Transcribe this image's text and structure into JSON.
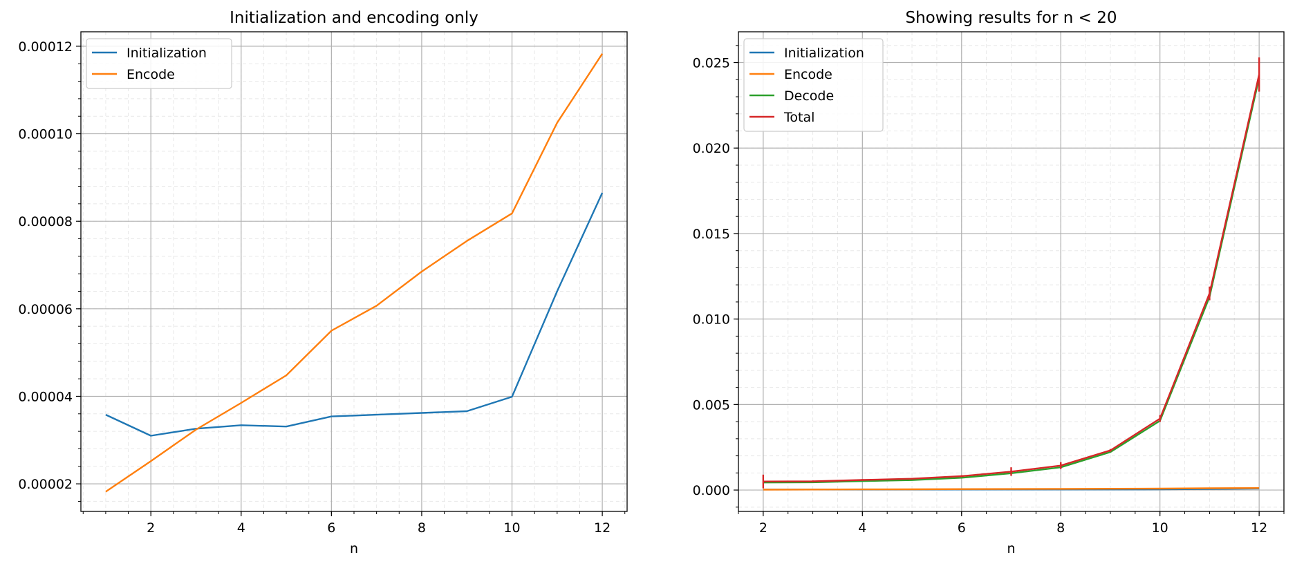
{
  "chart_data": [
    {
      "type": "line",
      "title": "Initialization and encoding only",
      "xlabel": "n",
      "ylabel": "",
      "xlim": [
        0.45,
        12.55
      ],
      "ylim": [
        1.37e-05,
        0.0001233
      ],
      "xticks": [
        2,
        4,
        6,
        8,
        10,
        12
      ],
      "xtick_labels": [
        "2",
        "4",
        "6",
        "8",
        "10",
        "12"
      ],
      "yticks": [
        2e-05,
        4e-05,
        6e-05,
        8e-05,
        0.0001,
        0.00012
      ],
      "ytick_labels": [
        "0.00002",
        "0.00004",
        "0.00006",
        "0.00008",
        "0.00010",
        "0.00012"
      ],
      "grid": true,
      "minor_grid": true,
      "legend_position": "top-left",
      "series": [
        {
          "name": "Initialization",
          "color": "#1f77b4",
          "x": [
            1,
            2,
            3,
            4,
            5,
            6,
            7,
            8,
            9,
            10,
            11,
            12
          ],
          "y": [
            3.58e-05,
            3.1e-05,
            3.26e-05,
            3.34e-05,
            3.31e-05,
            3.54e-05,
            3.58e-05,
            3.62e-05,
            3.66e-05,
            3.99e-05,
            6.4e-05,
            8.65e-05
          ]
        },
        {
          "name": "Encode",
          "color": "#ff7f0e",
          "x": [
            1,
            2,
            3,
            4,
            5,
            6,
            7,
            8,
            9,
            10,
            11,
            12
          ],
          "y": [
            1.82e-05,
            2.52e-05,
            3.24e-05,
            3.85e-05,
            4.48e-05,
            5.5e-05,
            6.07e-05,
            6.85e-05,
            7.55e-05,
            8.18e-05,
            0.0001025,
            0.0001183
          ]
        }
      ]
    },
    {
      "type": "line",
      "title": "Showing results for n < 20",
      "xlabel": "n",
      "ylabel": "",
      "xlim": [
        1.5,
        12.5
      ],
      "ylim": [
        -0.00125,
        0.0268
      ],
      "xticks": [
        2,
        4,
        6,
        8,
        10,
        12
      ],
      "xtick_labels": [
        "2",
        "4",
        "6",
        "8",
        "10",
        "12"
      ],
      "yticks": [
        0.0,
        0.005,
        0.01,
        0.015,
        0.02,
        0.025
      ],
      "ytick_labels": [
        "0.000",
        "0.005",
        "0.010",
        "0.015",
        "0.020",
        "0.025"
      ],
      "grid": true,
      "minor_grid": true,
      "legend_position": "top-left",
      "series": [
        {
          "name": "Initialization",
          "color": "#1f77b4",
          "x": [
            2,
            3,
            4,
            5,
            6,
            7,
            8,
            9,
            10,
            11,
            12
          ],
          "y": [
            3.1e-05,
            3.3e-05,
            3.3e-05,
            3.3e-05,
            3.5e-05,
            3.6e-05,
            3.6e-05,
            3.7e-05,
            4e-05,
            6.4e-05,
            8.7e-05
          ]
        },
        {
          "name": "Encode",
          "color": "#ff7f0e",
          "x": [
            2,
            3,
            4,
            5,
            6,
            7,
            8,
            9,
            10,
            11,
            12
          ],
          "y": [
            2.5e-05,
            3.2e-05,
            3.9e-05,
            4.5e-05,
            5.5e-05,
            6.1e-05,
            6.9e-05,
            7.6e-05,
            8.2e-05,
            0.000103,
            0.000118
          ]
        },
        {
          "name": "Decode",
          "color": "#2ca02c",
          "x": [
            2,
            3,
            4,
            5,
            6,
            7,
            8,
            9,
            10,
            11,
            12
          ],
          "y": [
            0.00044,
            0.00045,
            0.00052,
            0.00058,
            0.00072,
            0.00098,
            0.00133,
            0.00222,
            0.00405,
            0.0113,
            0.0241
          ]
        },
        {
          "name": "Total",
          "color": "#d62728",
          "x": [
            2,
            3,
            4,
            5,
            6,
            7,
            8,
            9,
            10,
            11,
            12
          ],
          "y": [
            0.0005,
            0.00051,
            0.00059,
            0.00066,
            0.00081,
            0.00108,
            0.00143,
            0.00232,
            0.00418,
            0.0115,
            0.0243
          ],
          "yerr": [
            0.0004,
            5e-05,
            5e-05,
            5e-05,
            6e-05,
            0.00025,
            0.0002,
            8e-05,
            0.0002,
            0.0004,
            0.001
          ]
        }
      ]
    }
  ]
}
